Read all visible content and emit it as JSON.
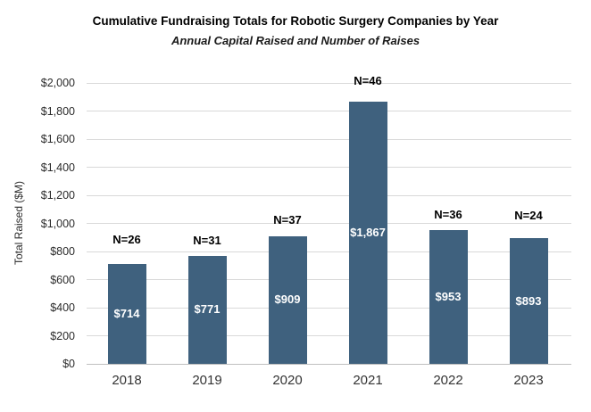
{
  "chart_data": {
    "type": "bar",
    "title": "Cumulative Fundraising Totals for Robotic Surgery Companies by Year",
    "subtitle": "Annual Capital Raised and Number of Raises",
    "categories": [
      "2018",
      "2019",
      "2020",
      "2021",
      "2022",
      "2023"
    ],
    "values": [
      714,
      771,
      909,
      1867,
      953,
      893
    ],
    "value_labels": [
      "$714",
      "$771",
      "$909",
      "$1,867",
      "$953",
      "$893"
    ],
    "n_counts": [
      26,
      31,
      37,
      46,
      36,
      24
    ],
    "n_labels": [
      "N=26",
      "N=31",
      "N=37",
      "N=46",
      "N=36",
      "N=24"
    ],
    "xlabel": "",
    "ylabel": "Total Raised ($M)",
    "ylim": [
      0,
      2000
    ],
    "ytick_step": 200,
    "ytick_labels": [
      "$0",
      "$200",
      "$400",
      "$600",
      "$800",
      "$1,000",
      "$1,200",
      "$1,400",
      "$1,600",
      "$1,800",
      "$2,000"
    ],
    "grid": true,
    "legend": false,
    "colors": {
      "bar": "#3f617e",
      "gridline": "#d9d9d9",
      "axis_line": "#bfbfbf",
      "value_label_text": "#ffffff",
      "n_label_text": "#000000",
      "tick_text": "#2b2b2b",
      "title_text": "#000000"
    }
  }
}
